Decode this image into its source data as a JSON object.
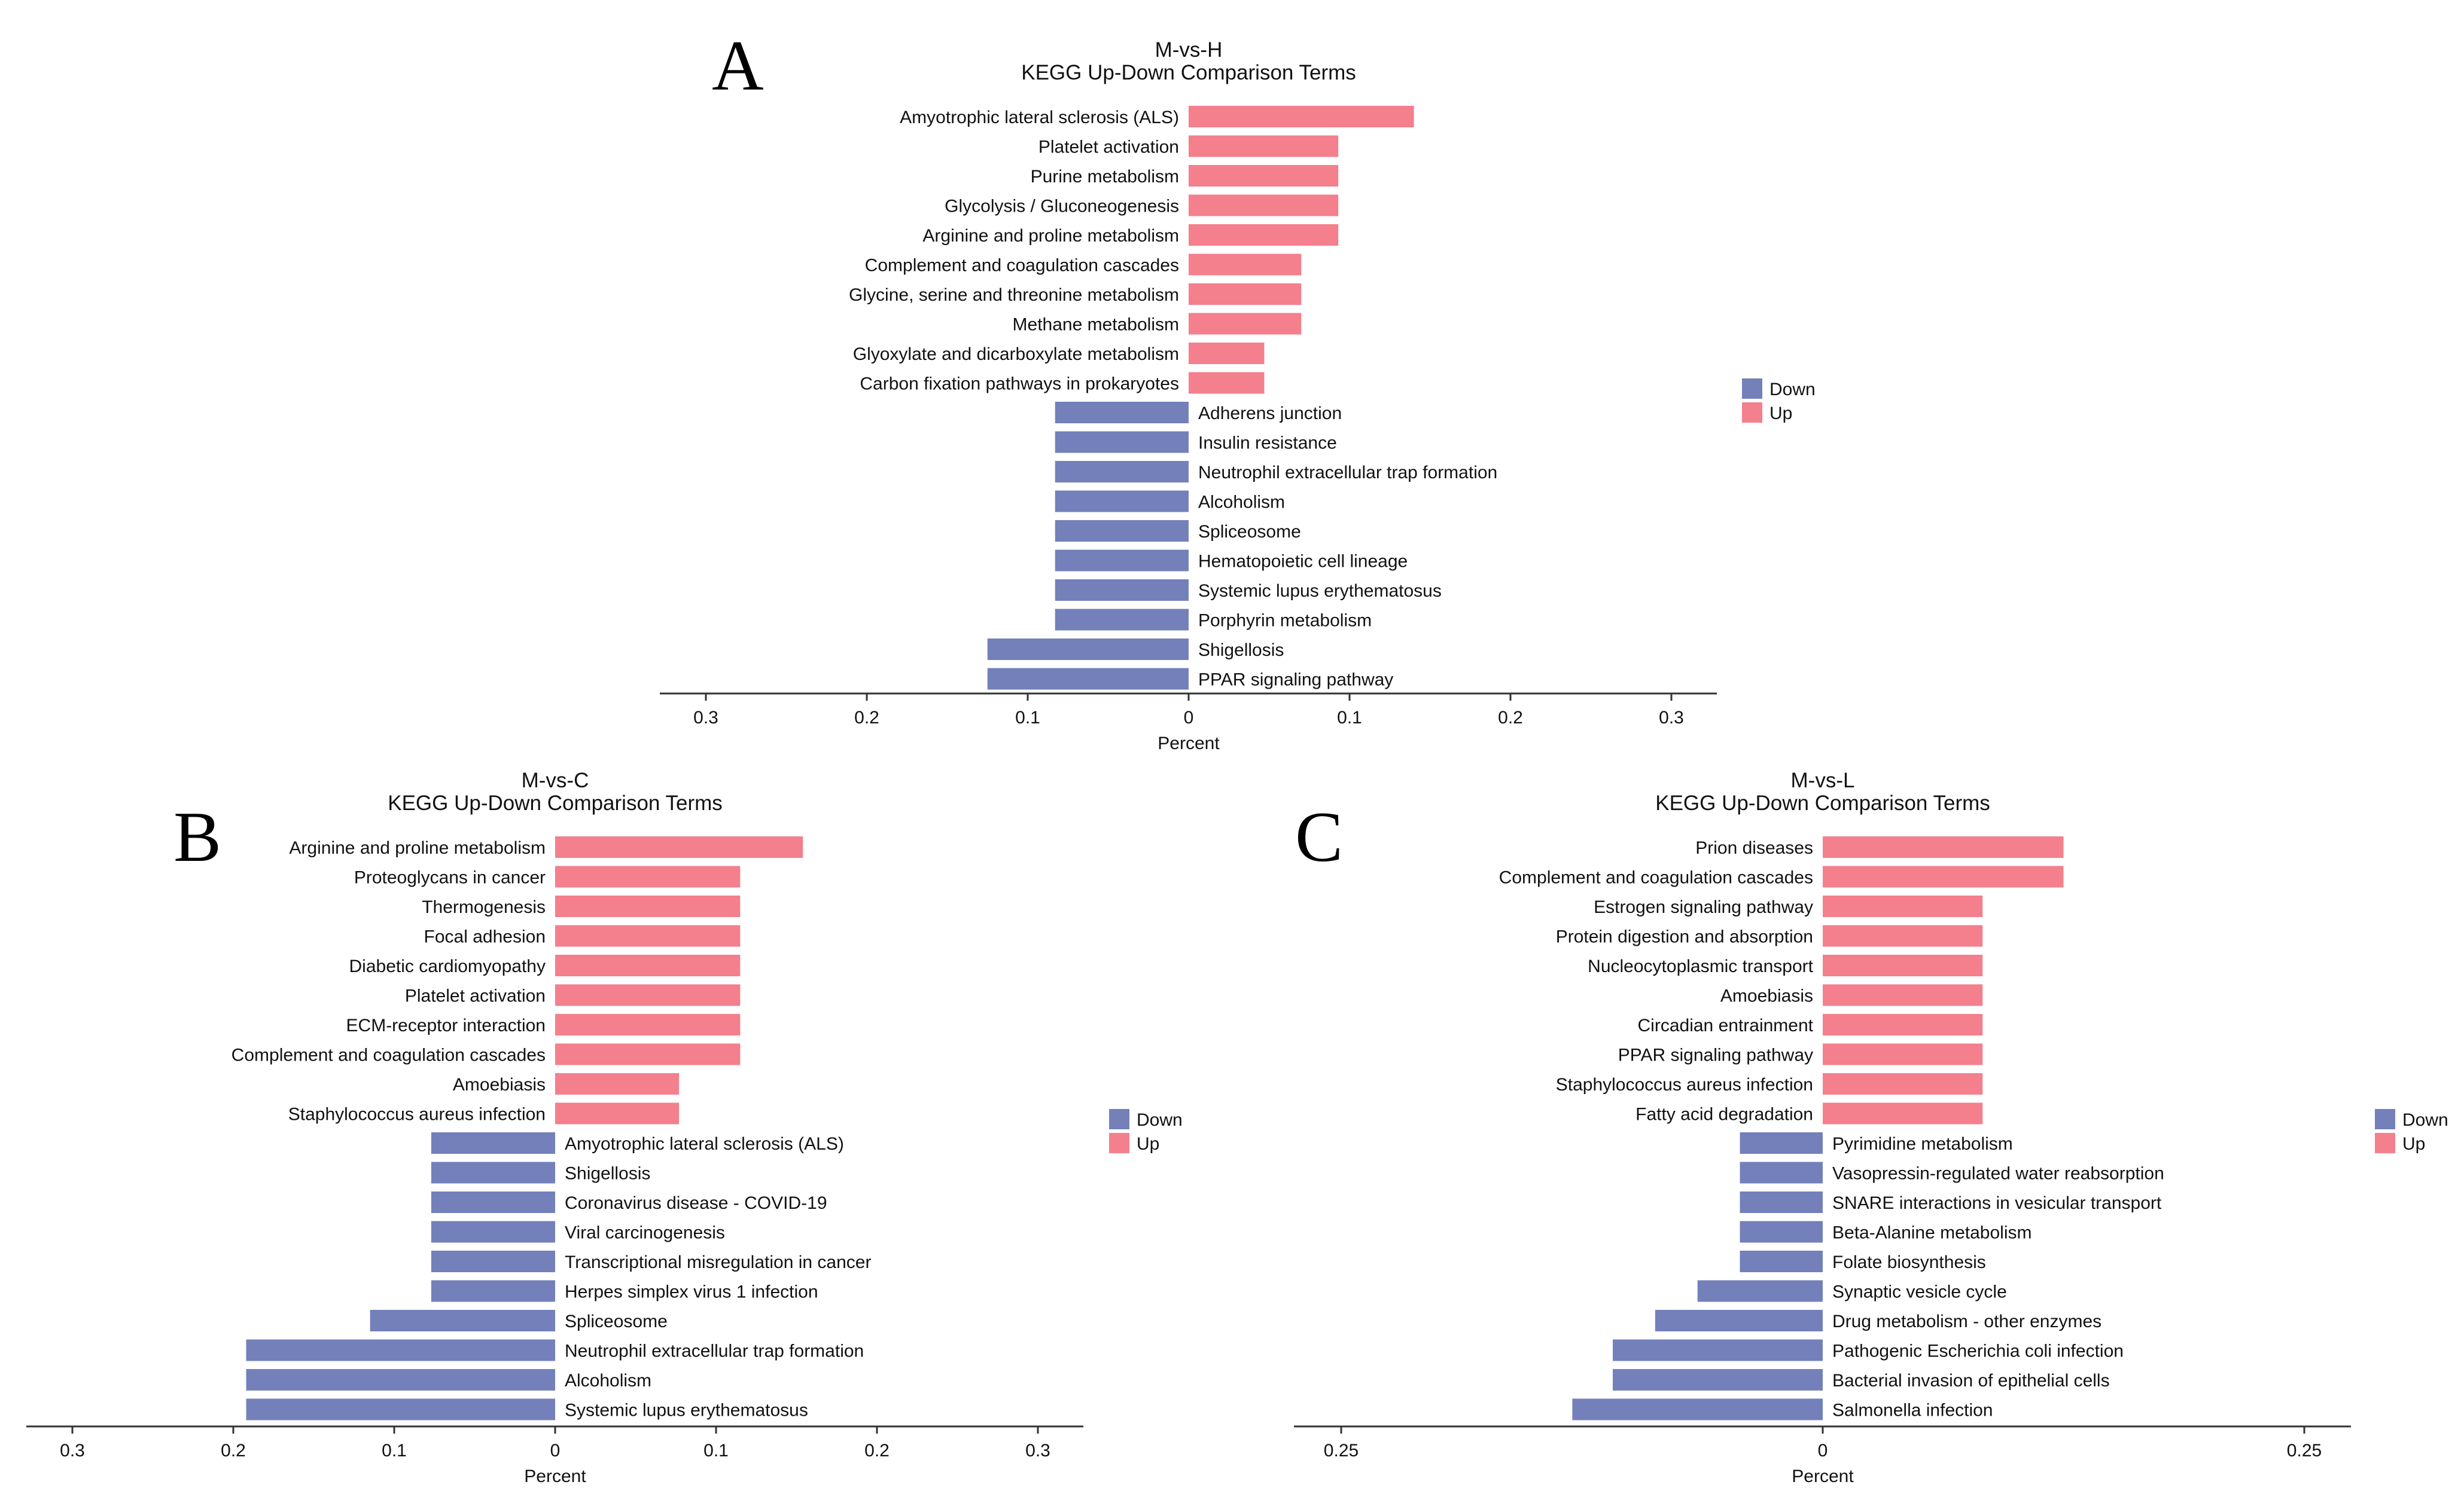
{
  "chart_data": [
    {
      "type": "bar",
      "panel_label": "A",
      "title": "M-vs-H",
      "subtitle": "KEGG Up-Down Comparison Terms",
      "xlabel": "Percent",
      "xlim": [
        -0.3,
        0.3
      ],
      "xticks": [
        -0.3,
        -0.2,
        -0.1,
        0,
        0.1,
        0.2,
        0.3
      ],
      "xtick_labels": [
        "0.3",
        "0.2",
        "0.1",
        "0",
        "0.1",
        "0.2",
        "0.3"
      ],
      "legend": [
        "Down",
        "Up"
      ],
      "colors": {
        "down": "#7480BA",
        "up": "#F47F8D"
      },
      "series": [
        {
          "name": "Up",
          "categories": [
            "Amyotrophic lateral sclerosis (ALS)",
            "Platelet activation",
            "Purine metabolism",
            "Glycolysis / Gluconeogenesis",
            "Arginine and proline metabolism",
            "Complement and coagulation cascades",
            "Glycine, serine and threonine metabolism",
            "Methane metabolism",
            "Glyoxylate and dicarboxylate metabolism",
            "Carbon fixation pathways in prokaryotes"
          ],
          "values": [
            0.14,
            0.093,
            0.093,
            0.093,
            0.093,
            0.07,
            0.07,
            0.07,
            0.047,
            0.047
          ]
        },
        {
          "name": "Down",
          "categories": [
            "Adherens junction",
            "Insulin resistance",
            "Neutrophil extracellular trap formation",
            "Alcoholism",
            "Spliceosome",
            "Hematopoietic cell lineage",
            "Systemic lupus erythematosus",
            "Porphyrin metabolism",
            "Shigellosis",
            "PPAR signaling pathway"
          ],
          "values": [
            0.083,
            0.083,
            0.083,
            0.083,
            0.083,
            0.083,
            0.083,
            0.083,
            0.125,
            0.125
          ]
        }
      ]
    },
    {
      "type": "bar",
      "panel_label": "B",
      "title": "M-vs-C",
      "subtitle": "KEGG Up-Down Comparison Terms",
      "xlabel": "Percent",
      "xlim": [
        -0.3,
        0.3
      ],
      "xticks": [
        -0.3,
        -0.2,
        -0.1,
        0,
        0.1,
        0.2,
        0.3
      ],
      "xtick_labels": [
        "0.3",
        "0.2",
        "0.1",
        "0",
        "0.1",
        "0.2",
        "0.3"
      ],
      "legend": [
        "Down",
        "Up"
      ],
      "colors": {
        "down": "#7480BA",
        "up": "#F47F8D"
      },
      "series": [
        {
          "name": "Up",
          "categories": [
            "Arginine and proline metabolism",
            "Proteoglycans in cancer",
            "Thermogenesis",
            "Focal adhesion",
            "Diabetic cardiomyopathy",
            "Platelet activation",
            "ECM-receptor interaction",
            "Complement and coagulation cascades",
            "Amoebiasis",
            "Staphylococcus aureus infection"
          ],
          "values": [
            0.154,
            0.115,
            0.115,
            0.115,
            0.115,
            0.115,
            0.115,
            0.115,
            0.077,
            0.077
          ]
        },
        {
          "name": "Down",
          "categories": [
            "Amyotrophic lateral sclerosis (ALS)",
            "Shigellosis",
            "Coronavirus disease - COVID-19",
            "Viral carcinogenesis",
            "Transcriptional misregulation in cancer",
            "Herpes simplex virus 1 infection",
            "Spliceosome",
            "Neutrophil extracellular trap formation",
            "Alcoholism",
            "Systemic lupus erythematosus"
          ],
          "values": [
            0.077,
            0.077,
            0.077,
            0.077,
            0.077,
            0.077,
            0.115,
            0.192,
            0.192,
            0.192
          ]
        }
      ]
    },
    {
      "type": "bar",
      "panel_label": "C",
      "title": "M-vs-L",
      "subtitle": "KEGG Up-Down Comparison Terms",
      "xlabel": "Percent",
      "xlim": [
        -0.275,
        0.275
      ],
      "xticks": [
        -0.25,
        0,
        0.25
      ],
      "xtick_labels": [
        "0.25",
        "0",
        "0.25"
      ],
      "legend": [
        "Down",
        "Up"
      ],
      "colors": {
        "down": "#7480BA",
        "up": "#F47F8D"
      },
      "series": [
        {
          "name": "Up",
          "categories": [
            "Prion diseases",
            "Complement and coagulation cascades",
            "Estrogen signaling pathway",
            "Protein digestion and absorption",
            "Nucleocytoplasmic transport",
            "Amoebiasis",
            "Circadian entrainment",
            "PPAR signaling pathway",
            "Staphylococcus aureus infection",
            "Fatty acid degradation"
          ],
          "values": [
            0.125,
            0.125,
            0.083,
            0.083,
            0.083,
            0.083,
            0.083,
            0.083,
            0.083,
            0.083
          ]
        },
        {
          "name": "Down",
          "categories": [
            "Pyrimidine metabolism",
            "Vasopressin-regulated water reabsorption",
            "SNARE interactions in vesicular transport",
            "Beta-Alanine metabolism",
            "Folate biosynthesis",
            "Synaptic vesicle cycle",
            "Drug metabolism - other enzymes",
            "Pathogenic Escherichia coli infection",
            "Bacterial invasion of epithelial cells",
            "Salmonella infection"
          ],
          "values": [
            0.043,
            0.043,
            0.043,
            0.043,
            0.043,
            0.065,
            0.087,
            0.109,
            0.109,
            0.13
          ]
        }
      ]
    }
  ]
}
